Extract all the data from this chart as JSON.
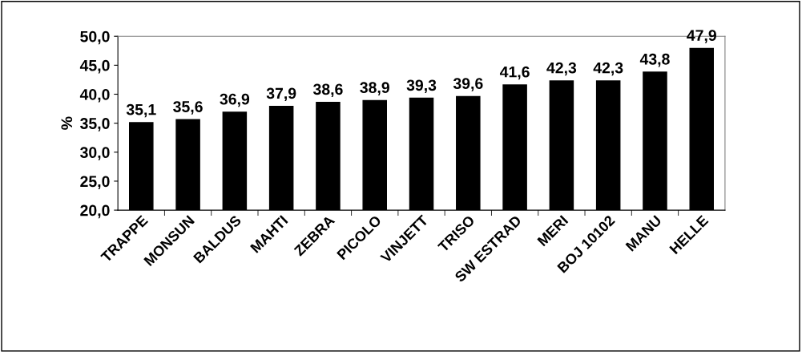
{
  "chart_data": {
    "type": "bar",
    "ylabel": "%",
    "categories": [
      "TRAPPE",
      "MONSUN",
      "BALDUS",
      "MAHTI",
      "ZEBRA",
      "PICOLO",
      "VINJETT",
      "TRISO",
      "SW ESTRAD",
      "MERI",
      "BOJ 10102",
      "MANU",
      "HELLE"
    ],
    "values": [
      35.1,
      35.6,
      36.9,
      37.9,
      38.6,
      38.9,
      39.3,
      39.6,
      41.6,
      42.3,
      42.3,
      43.8,
      47.9
    ],
    "value_labels": [
      "35,1",
      "35,6",
      "36,9",
      "37,9",
      "38,6",
      "38,9",
      "39,3",
      "39,6",
      "41,6",
      "42,3",
      "42,3",
      "43,8",
      "47,9"
    ],
    "color": "#000000",
    "ylim": [
      20,
      50
    ],
    "yticks": [
      {
        "value": 20,
        "label": "20,0"
      },
      {
        "value": 25,
        "label": "25,0"
      },
      {
        "value": 30,
        "label": "30,0"
      },
      {
        "value": 35,
        "label": "35,0"
      },
      {
        "value": 40,
        "label": "40,0"
      },
      {
        "value": 45,
        "label": "45,0"
      },
      {
        "value": 50,
        "label": "50,0"
      }
    ],
    "grid": false,
    "legend": false
  }
}
